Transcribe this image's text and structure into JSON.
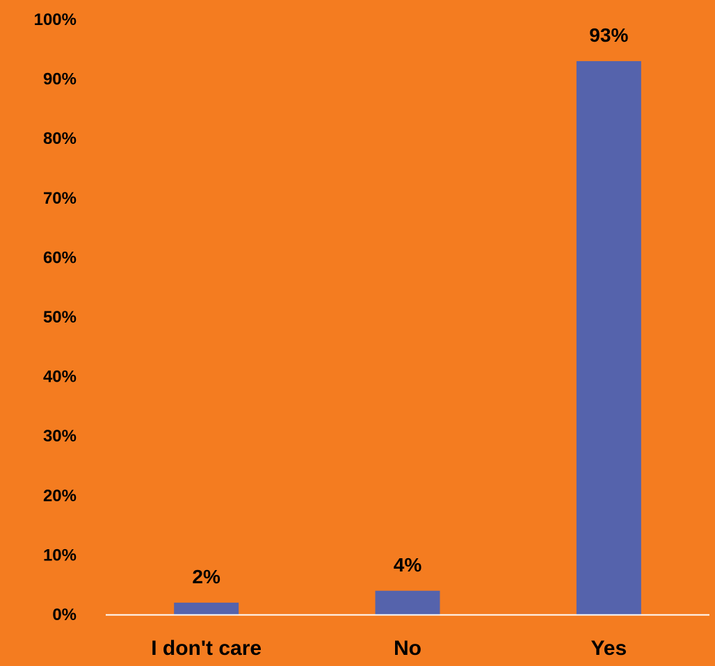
{
  "chart_data": {
    "type": "bar",
    "title": "",
    "xlabel": "",
    "ylabel": "",
    "categories": [
      "I don't care",
      "No",
      "Yes"
    ],
    "values": [
      2,
      4,
      93
    ],
    "data_labels": [
      "2%",
      "4%",
      "93%"
    ],
    "ylim": [
      0,
      100
    ],
    "yticks": [
      0,
      10,
      20,
      30,
      40,
      50,
      60,
      70,
      80,
      90,
      100
    ],
    "ytick_labels": [
      "0%",
      "10%",
      "20%",
      "30%",
      "40%",
      "50%",
      "60%",
      "70%",
      "80%",
      "90%",
      "100%"
    ],
    "grid": false,
    "legend": "none",
    "colors": {
      "background": "#F47C20",
      "bar": "#5563AC",
      "axis": "#FFFFFF",
      "text": "#000000"
    }
  }
}
